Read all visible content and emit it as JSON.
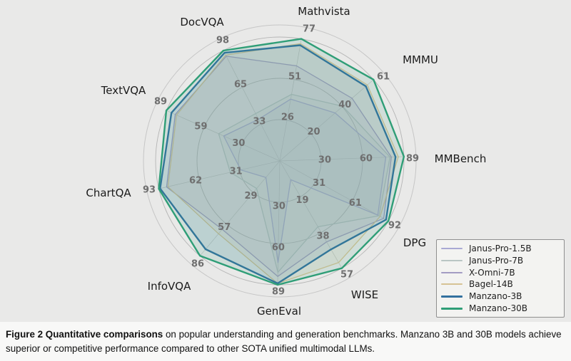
{
  "figure": {
    "caption_bold": "Figure 2  Quantitative comparisons",
    "caption_rest": " on popular understanding and generation benchmarks. Manzano 3B and 30B models achieve superior or competitive performance compared to other SOTA unified multimodal LLMs."
  },
  "chart_data": {
    "type": "radar",
    "axes": [
      {
        "label": "Mathvista",
        "max": 77,
        "ticks": [
          26,
          51,
          77
        ]
      },
      {
        "label": "MMMU",
        "max": 61,
        "ticks": [
          20,
          40,
          61
        ]
      },
      {
        "label": "MMBench",
        "max": 89,
        "ticks": [
          30,
          60,
          89
        ]
      },
      {
        "label": "DPG",
        "max": 92,
        "ticks": [
          31,
          61,
          92
        ]
      },
      {
        "label": "WISE",
        "max": 57,
        "ticks": [
          19,
          38,
          57
        ]
      },
      {
        "label": "GenEval",
        "max": 89,
        "ticks": [
          30,
          60,
          89
        ]
      },
      {
        "label": "InfoVQA",
        "max": 86,
        "ticks": [
          29,
          57,
          86
        ]
      },
      {
        "label": "ChartQA",
        "max": 93,
        "ticks": [
          31,
          62,
          93
        ]
      },
      {
        "label": "TextVQA",
        "max": 89,
        "ticks": [
          30,
          59,
          89
        ]
      },
      {
        "label": "DocVQA",
        "max": 98,
        "ticks": [
          33,
          65,
          98
        ]
      }
    ],
    "ring_fractions": [
      0.3333,
      0.6667,
      1.0
    ],
    "series": [
      {
        "name": "Janus-Pro-1.5B",
        "color": "#a9a9d4",
        "line_width": 1.3,
        "values": [
          39,
          36,
          76,
          83,
          10,
          73,
          15,
          30,
          44,
          37
        ]
      },
      {
        "name": "Janus-Pro-7B",
        "color": "#b9c6c4",
        "line_width": 1.3,
        "values": [
          42,
          41,
          79,
          84,
          35,
          80,
          25,
          38,
          48,
          42
        ]
      },
      {
        "name": "X-Omni-7B",
        "color": "#a39cc3",
        "line_width": 1.3,
        "values": [
          60,
          47,
          80,
          88,
          43,
          83,
          62,
          87,
          82,
          93
        ]
      },
      {
        "name": "Bagel-14B",
        "color": "#d6c294",
        "line_width": 1.3,
        "values": [
          74,
          57,
          85,
          85,
          54,
          88,
          66,
          86,
          81,
          94
        ]
      },
      {
        "name": "Manzano-3B",
        "color": "#33719f",
        "line_width": 2.4,
        "values": [
          73,
          56,
          83,
          90,
          47,
          88,
          80,
          92,
          85,
          96
        ]
      },
      {
        "name": "Manzano-30B",
        "color": "#2f9e77",
        "line_width": 2.4,
        "values": [
          77,
          61,
          89,
          92,
          57,
          89,
          86,
          93,
          89,
          98
        ]
      }
    ],
    "legend_position": "bottom-right",
    "grid": true,
    "fill_opacity": 0.13,
    "colors": {
      "grid": "#b5b5b5",
      "spine": "#c6c6c6",
      "spoke": "#c2c2c2",
      "tick_text": "#6f6f6f",
      "axis_label": "#1b1b1b",
      "chart_bg": "#e9e9e8",
      "caption_bg": "#f8f8f7",
      "legend_bg": "#f3f3f1",
      "legend_border": "#8f8f8f"
    }
  }
}
